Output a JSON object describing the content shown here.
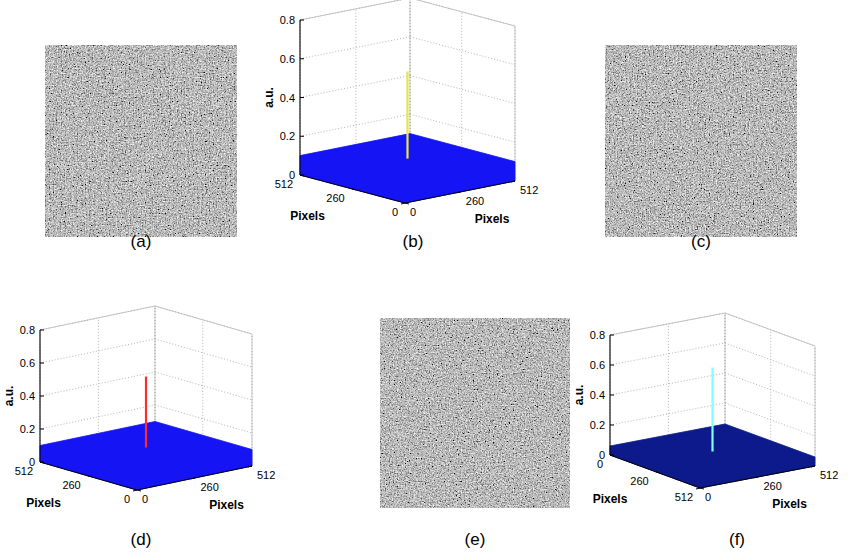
{
  "chart_data": [
    {
      "type": "surface3d",
      "label": "(b)",
      "xlabel": "Pixels",
      "ylabel": "Pixels",
      "zlabel": "a.u.",
      "xlim": [
        0,
        512
      ],
      "ylim": [
        0,
        512
      ],
      "zlim": [
        0,
        0.8
      ],
      "xticks": [
        0,
        260,
        512
      ],
      "yticks": [
        0,
        260,
        512
      ],
      "zticks": [
        0,
        0.2,
        0.4,
        0.6,
        0.8
      ],
      "grid": true,
      "noise_level": 0.1,
      "peak": {
        "x": 256,
        "y": 256,
        "value": 0.55
      },
      "colors": [
        "#1414f5",
        "#e6e64a"
      ]
    },
    {
      "type": "surface3d",
      "label": "(d)",
      "xlabel": "Pixels",
      "ylabel": "Pixels",
      "zlabel": "a.u.",
      "xlim": [
        0,
        512
      ],
      "ylim": [
        0,
        512
      ],
      "zlim": [
        0,
        0.8
      ],
      "xticks": [
        0,
        260,
        512
      ],
      "yticks": [
        0,
        260,
        512
      ],
      "zticks": [
        0,
        0.2,
        0.4,
        0.6,
        0.8
      ],
      "grid": true,
      "noise_level": 0.1,
      "peak": {
        "x": 256,
        "y": 256,
        "value": 0.53
      },
      "colors": [
        "#1414f5",
        "#ff2a2a"
      ]
    },
    {
      "type": "surface3d",
      "label": "(f)",
      "xlabel": "Pixels",
      "ylabel": "Pixels",
      "zlabel": "a.u.",
      "xlim": [
        0,
        512
      ],
      "ylim": [
        512,
        0
      ],
      "zlim": [
        0,
        0.8
      ],
      "xticks": [
        0,
        260,
        512
      ],
      "yticks": [
        0,
        260,
        512
      ],
      "zticks": [
        0,
        0.2,
        0.4,
        0.6,
        0.8
      ],
      "grid": true,
      "noise_level": 0.06,
      "peak": {
        "x": 256,
        "y": 256,
        "value": 0.62
      },
      "colors": [
        "#0c1a8c",
        "#80ffff"
      ]
    }
  ],
  "images": [
    {
      "label": "(a)"
    },
    {
      "label": "(c)"
    },
    {
      "label": "(e)"
    }
  ]
}
